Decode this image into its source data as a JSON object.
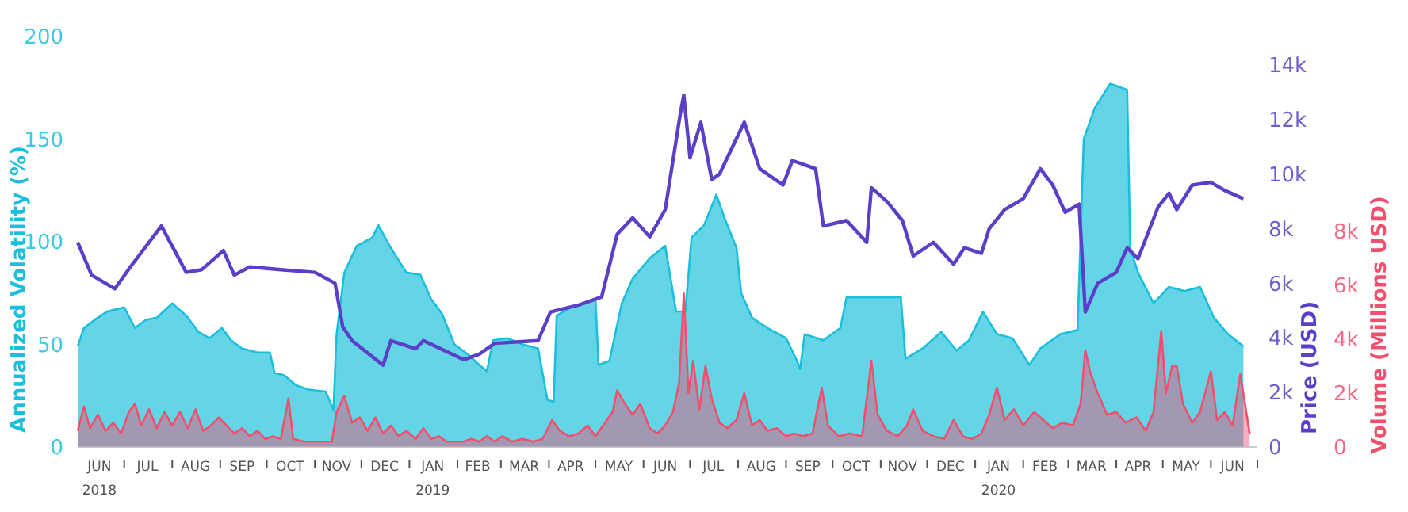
{
  "chart_data": {
    "type": "area",
    "ylabel": "Annualized Volatility (%)",
    "y2label": "Price (USD)",
    "y3label": "Volume (Millions USD)",
    "grid": false,
    "xlim": [
      "2018-06-01",
      "2020-07-01"
    ],
    "xticks": [
      {
        "value": "2018-06-15",
        "label": "JUN\n2018"
      },
      {
        "value": "2018-07-01",
        "label": null
      },
      {
        "value": "2018-07-16",
        "label": "JUL"
      },
      {
        "value": "2018-08-01",
        "label": null
      },
      {
        "value": "2018-08-16",
        "label": "AUG"
      },
      {
        "value": "2018-09-01",
        "label": null
      },
      {
        "value": "2018-09-15",
        "label": "SEP"
      },
      {
        "value": "2018-10-01",
        "label": null
      },
      {
        "value": "2018-10-16",
        "label": "OCT"
      },
      {
        "value": "2018-11-01",
        "label": null
      },
      {
        "value": "2018-11-15",
        "label": "NOV"
      },
      {
        "value": "2018-12-01",
        "label": null
      },
      {
        "value": "2018-12-16",
        "label": "DEC"
      },
      {
        "value": "2019-01-01",
        "label": null
      },
      {
        "value": "2019-01-16",
        "label": "JAN\n2019"
      },
      {
        "value": "2019-02-01",
        "label": null
      },
      {
        "value": "2019-02-14",
        "label": "FEB"
      },
      {
        "value": "2019-03-01",
        "label": null
      },
      {
        "value": "2019-03-16",
        "label": "MAR"
      },
      {
        "value": "2019-04-01",
        "label": null
      },
      {
        "value": "2019-04-15",
        "label": "APR"
      },
      {
        "value": "2019-05-01",
        "label": null
      },
      {
        "value": "2019-05-16",
        "label": "MAY"
      },
      {
        "value": "2019-06-01",
        "label": null
      },
      {
        "value": "2019-06-15",
        "label": "JUN"
      },
      {
        "value": "2019-07-01",
        "label": null
      },
      {
        "value": "2019-07-16",
        "label": "JUL"
      },
      {
        "value": "2019-08-01",
        "label": null
      },
      {
        "value": "2019-08-16",
        "label": "AUG"
      },
      {
        "value": "2019-09-01",
        "label": null
      },
      {
        "value": "2019-09-15",
        "label": "SEP"
      },
      {
        "value": "2019-10-01",
        "label": null
      },
      {
        "value": "2019-10-16",
        "label": "OCT"
      },
      {
        "value": "2019-11-01",
        "label": null
      },
      {
        "value": "2019-11-15",
        "label": "NOV"
      },
      {
        "value": "2019-12-01",
        "label": null
      },
      {
        "value": "2019-12-16",
        "label": "DEC"
      },
      {
        "value": "2020-01-01",
        "label": null
      },
      {
        "value": "2020-01-16",
        "label": "JAN\n2020"
      },
      {
        "value": "2020-02-01",
        "label": null
      },
      {
        "value": "2020-02-15",
        "label": "FEB"
      },
      {
        "value": "2020-03-01",
        "label": null
      },
      {
        "value": "2020-03-16",
        "label": "MAR"
      },
      {
        "value": "2020-04-01",
        "label": null
      },
      {
        "value": "2020-04-15",
        "label": "APR"
      },
      {
        "value": "2020-05-01",
        "label": null
      },
      {
        "value": "2020-05-16",
        "label": "MAY"
      },
      {
        "value": "2020-06-01",
        "label": null
      },
      {
        "value": "2020-06-15",
        "label": "JUN"
      },
      {
        "value": "2020-07-01",
        "label": null
      }
    ],
    "ylim": [
      0,
      200
    ],
    "yticks": [
      0,
      50,
      100,
      150,
      200
    ],
    "y2lim": [
      0,
      14000
    ],
    "y2ticks": [
      {
        "value": 0,
        "label": "0"
      },
      {
        "value": 2000,
        "label": "2k"
      },
      {
        "value": 4000,
        "label": "4k"
      },
      {
        "value": 6000,
        "label": "6k"
      },
      {
        "value": 8000,
        "label": "8k"
      },
      {
        "value": 10000,
        "label": "10k"
      },
      {
        "value": 12000,
        "label": "12k"
      },
      {
        "value": 14000,
        "label": "14k"
      }
    ],
    "y3lim": [
      0,
      8000
    ],
    "y3ticks": [
      {
        "value": 0,
        "label": "0"
      },
      {
        "value": 2000,
        "label": "2k"
      },
      {
        "value": 4000,
        "label": "4k"
      },
      {
        "value": 6000,
        "label": "6k"
      },
      {
        "value": 8000,
        "label": "8k"
      }
    ],
    "series": [
      {
        "color": "#1bbfdc",
        "x": [
          "2018-06-01",
          "2018-06-05",
          "2018-06-12",
          "2018-06-20",
          "2018-07-01",
          "2018-07-08",
          "2018-07-15",
          "2018-07-22",
          "2018-08-01",
          "2018-08-10",
          "2018-08-18",
          "2018-08-25",
          "2018-09-02",
          "2018-09-08",
          "2018-09-15",
          "2018-09-25",
          "2018-10-03",
          "2018-10-06",
          "2018-10-12",
          "2018-10-20",
          "2018-10-28",
          "2018-11-08",
          "2018-11-13",
          "2018-11-15",
          "2018-11-20",
          "2018-11-28",
          "2018-12-08",
          "2018-12-12",
          "2018-12-20",
          "2018-12-30",
          "2019-01-08",
          "2019-01-15",
          "2019-01-22",
          "2019-01-30",
          "2019-02-08",
          "2019-02-15",
          "2019-02-20",
          "2019-02-24",
          "2019-03-05",
          "2019-03-15",
          "2019-03-25",
          "2019-03-31",
          "2019-04-04",
          "2019-04-06",
          "2019-04-15",
          "2019-04-25",
          "2019-05-01",
          "2019-05-03",
          "2019-05-10",
          "2019-05-18",
          "2019-05-25",
          "2019-06-05",
          "2019-06-15",
          "2019-06-22",
          "2019-06-28",
          "2019-07-02",
          "2019-07-10",
          "2019-07-18",
          "2019-07-24",
          "2019-07-31",
          "2019-08-03",
          "2019-08-10",
          "2019-08-20",
          "2019-09-01",
          "2019-09-08",
          "2019-09-10",
          "2019-09-13",
          "2019-09-25",
          "2019-10-06",
          "2019-10-10",
          "2019-10-25",
          "2019-11-14",
          "2019-11-17",
          "2019-11-28",
          "2019-12-10",
          "2019-12-20",
          "2019-12-28",
          "2020-01-06",
          "2020-01-15",
          "2020-01-25",
          "2020-02-05",
          "2020-02-12",
          "2020-02-25",
          "2020-03-07",
          "2020-03-11",
          "2020-03-18",
          "2020-03-28",
          "2020-04-08",
          "2020-04-10",
          "2020-04-15",
          "2020-04-25",
          "2020-05-05",
          "2020-05-15",
          "2020-05-25",
          "2020-06-03",
          "2020-06-12",
          "2020-06-22"
        ],
        "values": [
          49,
          58,
          62,
          66,
          68,
          58,
          62,
          63,
          70,
          64,
          56,
          53,
          58,
          52,
          48,
          46,
          46,
          36,
          35,
          30,
          28,
          27,
          18,
          55,
          85,
          98,
          102,
          108,
          97,
          85,
          84,
          72,
          65,
          50,
          45,
          40,
          37,
          52,
          53,
          50,
          48,
          23,
          22,
          64,
          68,
          70,
          72,
          40,
          42,
          70,
          82,
          92,
          98,
          66,
          66,
          102,
          108,
          123,
          110,
          97,
          75,
          63,
          58,
          53,
          42,
          38,
          55,
          52,
          58,
          73,
          73,
          73,
          43,
          48,
          56,
          47,
          52,
          66,
          55,
          53,
          40,
          48,
          55,
          57,
          150,
          165,
          177,
          174,
          97,
          85,
          70,
          78,
          76,
          78,
          63,
          55,
          49
        ]
      },
      {
        "type": "area",
        "axis": "y3",
        "color": "#f0506e",
        "x": [
          "2018-06-01",
          "2018-06-05",
          "2018-06-09",
          "2018-06-14",
          "2018-06-19",
          "2018-06-24",
          "2018-06-29",
          "2018-07-04",
          "2018-07-08",
          "2018-07-12",
          "2018-07-17",
          "2018-07-22",
          "2018-07-27",
          "2018-08-01",
          "2018-08-06",
          "2018-08-11",
          "2018-08-16",
          "2018-08-21",
          "2018-08-26",
          "2018-08-31",
          "2018-09-05",
          "2018-09-10",
          "2018-09-15",
          "2018-09-20",
          "2018-09-25",
          "2018-09-30",
          "2018-10-05",
          "2018-10-10",
          "2018-10-15",
          "2018-10-18",
          "2018-10-25",
          "2018-10-30",
          "2018-11-05",
          "2018-11-12",
          "2018-11-15",
          "2018-11-20",
          "2018-11-25",
          "2018-11-30",
          "2018-12-05",
          "2018-12-10",
          "2018-12-15",
          "2018-12-20",
          "2018-12-25",
          "2018-12-30",
          "2019-01-05",
          "2019-01-10",
          "2019-01-15",
          "2019-01-20",
          "2019-01-25",
          "2019-01-30",
          "2019-02-05",
          "2019-02-10",
          "2019-02-15",
          "2019-02-20",
          "2019-02-25",
          "2019-03-02",
          "2019-03-08",
          "2019-03-15",
          "2019-03-22",
          "2019-03-28",
          "2019-04-03",
          "2019-04-08",
          "2019-04-14",
          "2019-04-20",
          "2019-04-26",
          "2019-05-01",
          "2019-05-06",
          "2019-05-12",
          "2019-05-15",
          "2019-05-20",
          "2019-05-25",
          "2019-05-30",
          "2019-06-05",
          "2019-06-10",
          "2019-06-15",
          "2019-06-20",
          "2019-06-24",
          "2019-06-27",
          "2019-06-30",
          "2019-07-03",
          "2019-07-07",
          "2019-07-11",
          "2019-07-15",
          "2019-07-20",
          "2019-07-25",
          "2019-07-31",
          "2019-08-05",
          "2019-08-10",
          "2019-08-15",
          "2019-08-20",
          "2019-08-26",
          "2019-09-01",
          "2019-09-06",
          "2019-09-12",
          "2019-09-18",
          "2019-09-24",
          "2019-09-28",
          "2019-10-05",
          "2019-10-12",
          "2019-10-20",
          "2019-10-26",
          "2019-10-30",
          "2019-11-05",
          "2019-11-12",
          "2019-11-18",
          "2019-11-22",
          "2019-11-28",
          "2019-12-05",
          "2019-12-12",
          "2019-12-18",
          "2019-12-24",
          "2019-12-30",
          "2020-01-05",
          "2020-01-10",
          "2020-01-15",
          "2020-01-20",
          "2020-01-26",
          "2020-02-01",
          "2020-02-08",
          "2020-02-14",
          "2020-02-20",
          "2020-02-26",
          "2020-03-04",
          "2020-03-09",
          "2020-03-12",
          "2020-03-15",
          "2020-03-20",
          "2020-03-26",
          "2020-04-01",
          "2020-04-07",
          "2020-04-14",
          "2020-04-20",
          "2020-04-25",
          "2020-04-30",
          "2020-05-03",
          "2020-05-07",
          "2020-05-10",
          "2020-05-14",
          "2020-05-20",
          "2020-05-25",
          "2020-06-01",
          "2020-06-05",
          "2020-06-10",
          "2020-06-15",
          "2020-06-20",
          "2020-06-26"
        ],
        "values": [
          600,
          1500,
          700,
          1200,
          600,
          900,
          500,
          1300,
          1600,
          800,
          1400,
          700,
          1300,
          800,
          1300,
          700,
          1400,
          600,
          800,
          1100,
          800,
          500,
          700,
          400,
          600,
          300,
          400,
          300,
          1800,
          300,
          200,
          200,
          200,
          200,
          1300,
          1900,
          900,
          1100,
          600,
          1100,
          500,
          800,
          400,
          600,
          300,
          700,
          300,
          400,
          200,
          200,
          200,
          300,
          200,
          400,
          200,
          400,
          200,
          300,
          200,
          300,
          1000,
          600,
          400,
          500,
          800,
          400,
          800,
          1300,
          2100,
          1600,
          1200,
          1600,
          700,
          500,
          800,
          1300,
          2400,
          5700,
          2000,
          3200,
          1400,
          3000,
          1800,
          900,
          700,
          1000,
          2000,
          800,
          1000,
          600,
          700,
          400,
          500,
          400,
          500,
          2200,
          800,
          400,
          500,
          400,
          3200,
          1200,
          600,
          400,
          800,
          1400,
          600,
          400,
          300,
          1000,
          400,
          300,
          500,
          1200,
          2200,
          1000,
          1400,
          800,
          1300,
          1000,
          700,
          900,
          800,
          1600,
          3600,
          2800,
          2000,
          1200,
          1300,
          900,
          1100,
          600,
          1300,
          4300,
          2000,
          3000,
          3000,
          1600,
          900,
          1300,
          2800,
          1000,
          1300,
          800,
          2700,
          500
        ]
      },
      {
        "type": "line",
        "axis": "y2",
        "color": "#5b3fc6",
        "x": [
          "2018-06-01",
          "2018-06-10",
          "2018-06-25",
          "2018-07-05",
          "2018-07-25",
          "2018-08-10",
          "2018-08-20",
          "2018-09-03",
          "2018-09-10",
          "2018-09-20",
          "2018-10-10",
          "2018-11-01",
          "2018-11-14",
          "2018-11-19",
          "2018-11-25",
          "2018-12-15",
          "2018-12-20",
          "2019-01-05",
          "2019-01-10",
          "2019-02-05",
          "2019-02-15",
          "2019-02-25",
          "2019-03-25",
          "2019-04-02",
          "2019-04-20",
          "2019-05-05",
          "2019-05-15",
          "2019-05-25",
          "2019-06-05",
          "2019-06-15",
          "2019-06-25",
          "2019-06-27",
          "2019-07-01",
          "2019-07-08",
          "2019-07-15",
          "2019-07-20",
          "2019-08-05",
          "2019-08-15",
          "2019-08-30",
          "2019-09-05",
          "2019-09-20",
          "2019-09-25",
          "2019-10-10",
          "2019-10-23",
          "2019-10-26",
          "2019-11-05",
          "2019-11-15",
          "2019-11-22",
          "2019-12-05",
          "2019-12-18",
          "2019-12-25",
          "2020-01-05",
          "2020-01-10",
          "2020-01-20",
          "2020-02-01",
          "2020-02-12",
          "2020-02-20",
          "2020-02-28",
          "2020-03-08",
          "2020-03-12",
          "2020-03-20",
          "2020-04-01",
          "2020-04-08",
          "2020-04-15",
          "2020-04-28",
          "2020-05-05",
          "2020-05-10",
          "2020-05-20",
          "2020-06-01",
          "2020-06-10",
          "2020-06-22"
        ],
        "values": [
          7500,
          6300,
          5800,
          6600,
          8100,
          6400,
          6500,
          7200,
          6300,
          6600,
          6500,
          6400,
          6000,
          4400,
          3900,
          3000,
          3900,
          3600,
          3900,
          3200,
          3400,
          3800,
          3900,
          4950,
          5200,
          5500,
          7800,
          8400,
          7700,
          8700,
          12300,
          12900,
          10600,
          11900,
          9800,
          10000,
          11900,
          10200,
          9600,
          10500,
          10200,
          8100,
          8300,
          7500,
          9500,
          9000,
          8300,
          7000,
          7500,
          6700,
          7300,
          7100,
          8000,
          8700,
          9100,
          10200,
          9600,
          8600,
          8900,
          4950,
          6000,
          6400,
          7300,
          6900,
          8800,
          9300,
          8700,
          9600,
          9700,
          9400,
          9100
        ]
      }
    ]
  }
}
